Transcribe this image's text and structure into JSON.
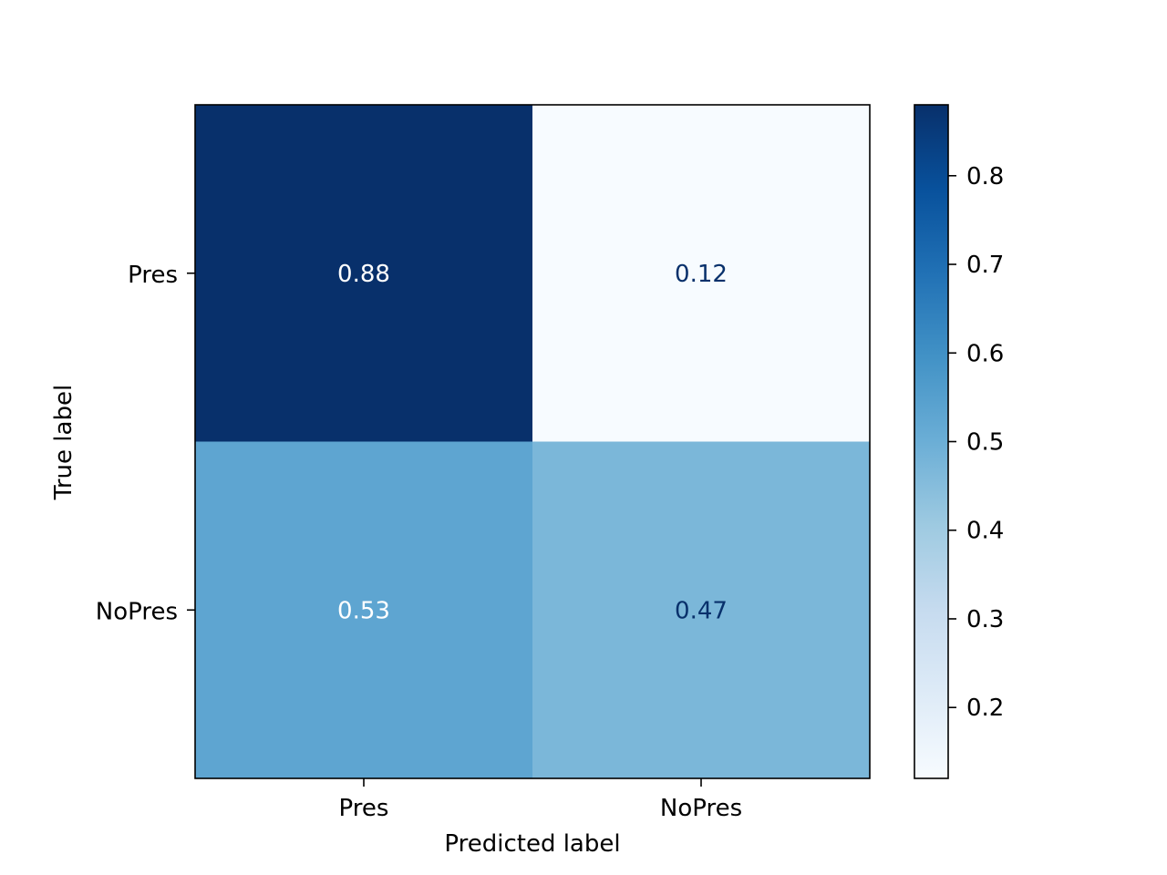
{
  "chart_data": {
    "type": "heatmap",
    "title": "",
    "xlabel": "Predicted label",
    "ylabel": "True label",
    "x_categories": [
      "Pres",
      "NoPres"
    ],
    "y_categories": [
      "Pres",
      "NoPres"
    ],
    "values": [
      [
        0.88,
        0.12
      ],
      [
        0.53,
        0.47
      ]
    ],
    "value_labels": [
      [
        "0.88",
        "0.12"
      ],
      [
        "0.53",
        "0.47"
      ]
    ],
    "colormap": "Blues",
    "color_range": [
      0.12,
      0.88
    ],
    "colorbar": {
      "ticks": [
        0.2,
        0.3,
        0.4,
        0.5,
        0.6,
        0.7,
        0.8
      ],
      "tick_labels": [
        "0.2",
        "0.3",
        "0.4",
        "0.5",
        "0.6",
        "0.7",
        "0.8"
      ]
    },
    "text_colors": {
      "on_dark": "#ffffff",
      "on_light": "#08306b"
    }
  }
}
